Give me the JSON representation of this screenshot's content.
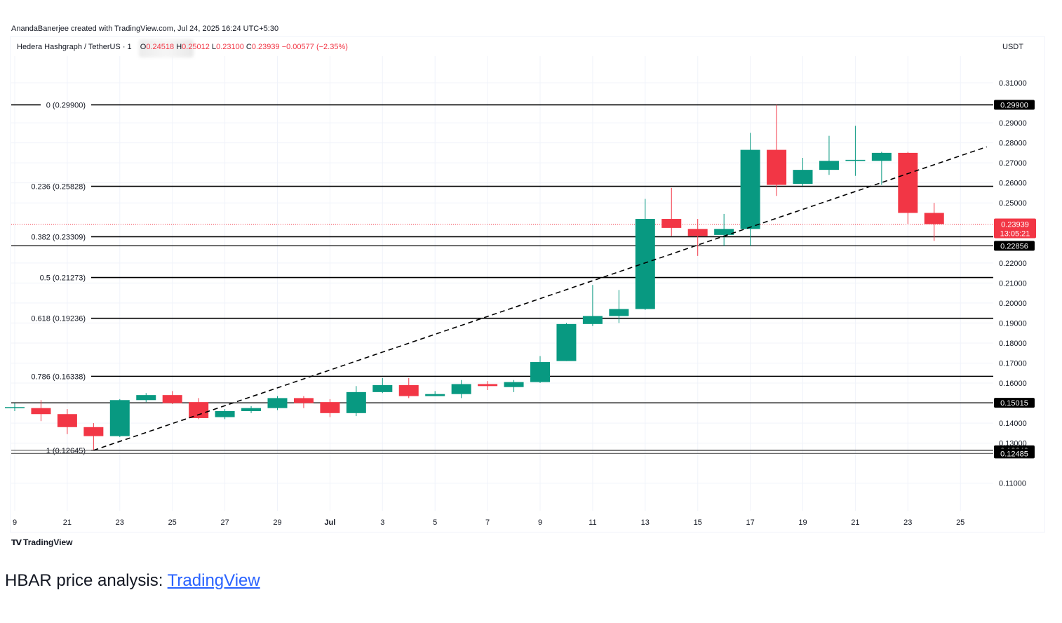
{
  "attribution": "AnandaBanerjee created with TradingView.com, Jul 24, 2025 16:24 UTC+5:30",
  "header": {
    "symbol": "Hedera Hashgraph / TetherUS · 1",
    "open_label": "O",
    "open": "0.24518",
    "high_label": "H",
    "high": "0.25012",
    "low_label": "L",
    "low": "0.23100",
    "close_label": "C",
    "close": "0.23939",
    "change": "−0.00577 (−2.35%)"
  },
  "currency": "USDT",
  "footer_logo": "TradingView",
  "caption": {
    "text": "HBAR price analysis: ",
    "link": "TradingView"
  },
  "colors": {
    "up": "#089981",
    "down": "#f23645",
    "line": "#000000",
    "label_bg": "#000000",
    "price_label_bg": "#f23645"
  },
  "chart_data": {
    "type": "candlestick",
    "title": "Hedera Hashgraph / TetherUS",
    "ylim": [
      0.10516,
      0.32034
    ],
    "y_ticks": [
      "0.31000",
      "0.29000",
      "0.28000",
      "0.27000",
      "0.26000",
      "0.25000",
      "0.22000",
      "0.21000",
      "0.20000",
      "0.19000",
      "0.18000",
      "0.17000",
      "0.16000",
      "0.14000",
      "0.13000",
      "0.11000"
    ],
    "x_ticks": [
      {
        "day": 0,
        "label": "9"
      },
      {
        "day": 2,
        "label": "21"
      },
      {
        "day": 4,
        "label": "23"
      },
      {
        "day": 6,
        "label": "25"
      },
      {
        "day": 8,
        "label": "27"
      },
      {
        "day": 10,
        "label": "29"
      },
      {
        "day": 12,
        "label": "Jul"
      },
      {
        "day": 14,
        "label": "3"
      },
      {
        "day": 16,
        "label": "5"
      },
      {
        "day": 18,
        "label": "7"
      },
      {
        "day": 20,
        "label": "9"
      },
      {
        "day": 22,
        "label": "11"
      },
      {
        "day": 24,
        "label": "13"
      },
      {
        "day": 26,
        "label": "15"
      },
      {
        "day": 28,
        "label": "17"
      },
      {
        "day": 30,
        "label": "19"
      },
      {
        "day": 32,
        "label": "21"
      },
      {
        "day": 34,
        "label": "23"
      },
      {
        "day": 36,
        "label": "25"
      }
    ],
    "candles": [
      {
        "d": 0,
        "o": 0.148,
        "h": 0.15,
        "l": 0.146,
        "c": 0.148
      },
      {
        "d": 1,
        "o": 0.1475,
        "h": 0.1515,
        "l": 0.141,
        "c": 0.1445
      },
      {
        "d": 2,
        "o": 0.1445,
        "h": 0.147,
        "l": 0.1345,
        "c": 0.138
      },
      {
        "d": 3,
        "o": 0.138,
        "h": 0.14,
        "l": 0.1264,
        "c": 0.1335
      },
      {
        "d": 4,
        "o": 0.1335,
        "h": 0.152,
        "l": 0.133,
        "c": 0.1515
      },
      {
        "d": 5,
        "o": 0.1515,
        "h": 0.155,
        "l": 0.1505,
        "c": 0.154
      },
      {
        "d": 6,
        "o": 0.154,
        "h": 0.156,
        "l": 0.1495,
        "c": 0.15
      },
      {
        "d": 7,
        "o": 0.1505,
        "h": 0.1525,
        "l": 0.142,
        "c": 0.1425
      },
      {
        "d": 8,
        "o": 0.143,
        "h": 0.147,
        "l": 0.142,
        "c": 0.146
      },
      {
        "d": 9,
        "o": 0.146,
        "h": 0.1485,
        "l": 0.145,
        "c": 0.1475
      },
      {
        "d": 10,
        "o": 0.1475,
        "h": 0.1535,
        "l": 0.1465,
        "c": 0.1525
      },
      {
        "d": 11,
        "o": 0.1525,
        "h": 0.1535,
        "l": 0.1475,
        "c": 0.15
      },
      {
        "d": 12,
        "o": 0.1505,
        "h": 0.152,
        "l": 0.143,
        "c": 0.145
      },
      {
        "d": 13,
        "o": 0.145,
        "h": 0.1585,
        "l": 0.1435,
        "c": 0.1555
      },
      {
        "d": 14,
        "o": 0.1555,
        "h": 0.1625,
        "l": 0.155,
        "c": 0.159
      },
      {
        "d": 15,
        "o": 0.159,
        "h": 0.1625,
        "l": 0.1525,
        "c": 0.1535
      },
      {
        "d": 16,
        "o": 0.1535,
        "h": 0.156,
        "l": 0.1535,
        "c": 0.1545
      },
      {
        "d": 17,
        "o": 0.1545,
        "h": 0.1615,
        "l": 0.1525,
        "c": 0.1595
      },
      {
        "d": 18,
        "o": 0.1595,
        "h": 0.161,
        "l": 0.1565,
        "c": 0.1585
      },
      {
        "d": 19,
        "o": 0.158,
        "h": 0.1615,
        "l": 0.1555,
        "c": 0.1605
      },
      {
        "d": 20,
        "o": 0.1605,
        "h": 0.1735,
        "l": 0.16,
        "c": 0.1705
      },
      {
        "d": 21,
        "o": 0.171,
        "h": 0.19,
        "l": 0.171,
        "c": 0.1895
      },
      {
        "d": 22,
        "o": 0.1895,
        "h": 0.209,
        "l": 0.1885,
        "c": 0.1935
      },
      {
        "d": 23,
        "o": 0.1935,
        "h": 0.2065,
        "l": 0.19,
        "c": 0.197
      },
      {
        "d": 24,
        "o": 0.197,
        "h": 0.252,
        "l": 0.1965,
        "c": 0.242
      },
      {
        "d": 25,
        "o": 0.242,
        "h": 0.2575,
        "l": 0.2335,
        "c": 0.2375
      },
      {
        "d": 26,
        "o": 0.237,
        "h": 0.242,
        "l": 0.2235,
        "c": 0.2335
      },
      {
        "d": 27,
        "o": 0.234,
        "h": 0.2445,
        "l": 0.2285,
        "c": 0.237
      },
      {
        "d": 28,
        "o": 0.237,
        "h": 0.285,
        "l": 0.2285,
        "c": 0.2765
      },
      {
        "d": 29,
        "o": 0.2765,
        "h": 0.299,
        "l": 0.2535,
        "c": 0.259
      },
      {
        "d": 30,
        "o": 0.2595,
        "h": 0.2725,
        "l": 0.2585,
        "c": 0.2665
      },
      {
        "d": 31,
        "o": 0.2665,
        "h": 0.2835,
        "l": 0.264,
        "c": 0.271
      },
      {
        "d": 32,
        "o": 0.271,
        "h": 0.2885,
        "l": 0.2635,
        "c": 0.2715
      },
      {
        "d": 33,
        "o": 0.271,
        "h": 0.2755,
        "l": 0.259,
        "c": 0.275
      },
      {
        "d": 34,
        "o": 0.275,
        "h": 0.2755,
        "l": 0.2395,
        "c": 0.245
      },
      {
        "d": 35,
        "o": 0.245,
        "h": 0.25,
        "l": 0.231,
        "c": 0.2394
      }
    ],
    "fib_levels": [
      {
        "label": "0 (0.29900)",
        "value": 0.299
      },
      {
        "label": "0.236 (0.25828)",
        "value": 0.25828
      },
      {
        "label": "0.382 (0.23309)",
        "value": 0.23309
      },
      {
        "label": "0.5 (0.21273)",
        "value": 0.21273
      },
      {
        "label": "0.618 (0.19236)",
        "value": 0.19236
      },
      {
        "label": "0.786 (0.16338)",
        "value": 0.16338
      },
      {
        "label": "1 (0.12645)",
        "value": 0.12645
      }
    ],
    "horizontal_lines": [
      {
        "value": 0.22856,
        "label": "0.22856"
      },
      {
        "value": 0.15015,
        "label": "0.15015"
      },
      {
        "value": 0.12642,
        "label": "0.12642"
      },
      {
        "value": 0.12485,
        "label": "0.12485"
      }
    ],
    "right_labels": [
      {
        "value": 0.299,
        "text": "0.29900"
      }
    ],
    "price_label": {
      "value": 0.23939,
      "text": "0.23939",
      "countdown": "13:05:21"
    },
    "trendline": [
      {
        "d": 3,
        "v": 0.1264
      },
      {
        "d": 37,
        "v": 0.278
      }
    ]
  }
}
